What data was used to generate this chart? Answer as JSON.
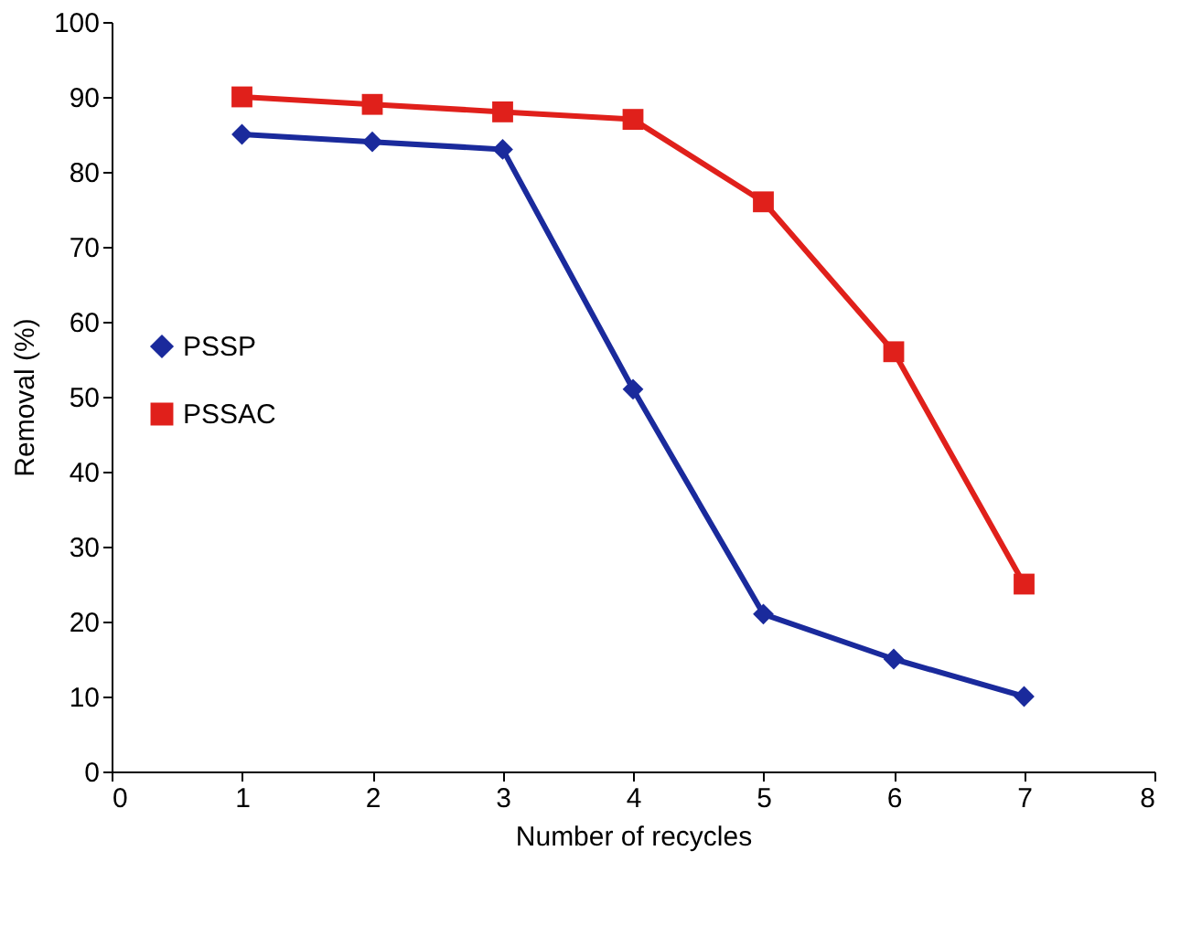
{
  "chart_data": {
    "type": "line",
    "xlabel": "Number of recycles",
    "ylabel": "Removal (%)",
    "x": [
      1,
      2,
      3,
      4,
      5,
      6,
      7
    ],
    "series": [
      {
        "name": "PSSP",
        "color": "#1a2a9c",
        "marker": "diamond",
        "values": [
          85,
          84,
          83,
          51,
          21,
          15,
          10
        ]
      },
      {
        "name": "PSSAC",
        "color": "#e0201b",
        "marker": "square",
        "values": [
          90,
          89,
          88,
          87,
          76,
          56,
          25
        ]
      }
    ],
    "xlim": [
      0,
      8
    ],
    "xticks": [
      0,
      1,
      2,
      3,
      4,
      5,
      6,
      7,
      8
    ],
    "ylim": [
      0,
      100
    ],
    "yticks": [
      0,
      10,
      20,
      30,
      40,
      50,
      60,
      70,
      80,
      90,
      100
    ],
    "grid": false,
    "legend": "left",
    "line_style": "solid"
  }
}
